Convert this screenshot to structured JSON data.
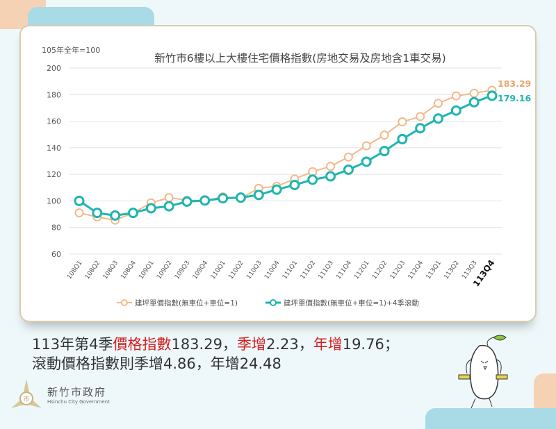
{
  "chart_data": {
    "type": "line",
    "title": "新竹市6樓以上大樓住宅價格指數(房地交易及房地含1車交易)",
    "ylabel": "105年全年=100",
    "ylim": [
      60,
      200
    ],
    "yticks": [
      60,
      80,
      100,
      120,
      140,
      160,
      180,
      200
    ],
    "grid": true,
    "legend": "bottom",
    "categories": [
      "108Q1",
      "108Q2",
      "108Q3",
      "108Q4",
      "109Q1",
      "109Q2",
      "109Q3",
      "109Q4",
      "110Q1",
      "110Q2",
      "110Q3",
      "110Q4",
      "111Q1",
      "111Q2",
      "111Q3",
      "111Q4",
      "112Q1",
      "112Q2",
      "112Q3",
      "112Q4",
      "113Q1",
      "113Q2",
      "113Q3",
      "113Q4"
    ],
    "series": [
      {
        "name": "建坪單價指數(無車位+車位=1)",
        "color": "#f2b98a",
        "values": [
          91,
          88,
          85.5,
          91,
          98.5,
          102.5,
          100.5,
          100,
          103,
          102,
          109.5,
          111,
          116.5,
          122,
          126,
          133,
          141.5,
          149.5,
          159.5,
          163.53,
          173.5,
          179,
          181.06,
          183.29
        ],
        "end_label": "183.29"
      },
      {
        "name": "建坪單價指數(無車位+車位=1)+4季滾動",
        "color": "#1fb5b0",
        "values": [
          100,
          91,
          89,
          91,
          94.5,
          96,
          99.5,
          100.3,
          102,
          102.5,
          104.5,
          108.5,
          112,
          116,
          118.5,
          123.5,
          129.5,
          137.5,
          146.5,
          154.68,
          162,
          168,
          174.3,
          179.16
        ],
        "end_label": "179.16"
      }
    ]
  },
  "summary": {
    "line1": [
      {
        "text": "113年第4季",
        "hl": false
      },
      {
        "text": "價格指數",
        "hl": true
      },
      {
        "text": "183.29，",
        "hl": false
      },
      {
        "text": "季增",
        "hl": true
      },
      {
        "text": "2.23，",
        "hl": false
      },
      {
        "text": "年增",
        "hl": true
      },
      {
        "text": "19.76；",
        "hl": false
      }
    ],
    "line2": "滾動價格指數則季增4.86，年增24.48"
  },
  "logo": {
    "name_zh": "新竹市政府",
    "name_en": "Hsinchu City Government"
  },
  "colors": {
    "highlight": "#d42020",
    "background": "#eef8fb"
  }
}
